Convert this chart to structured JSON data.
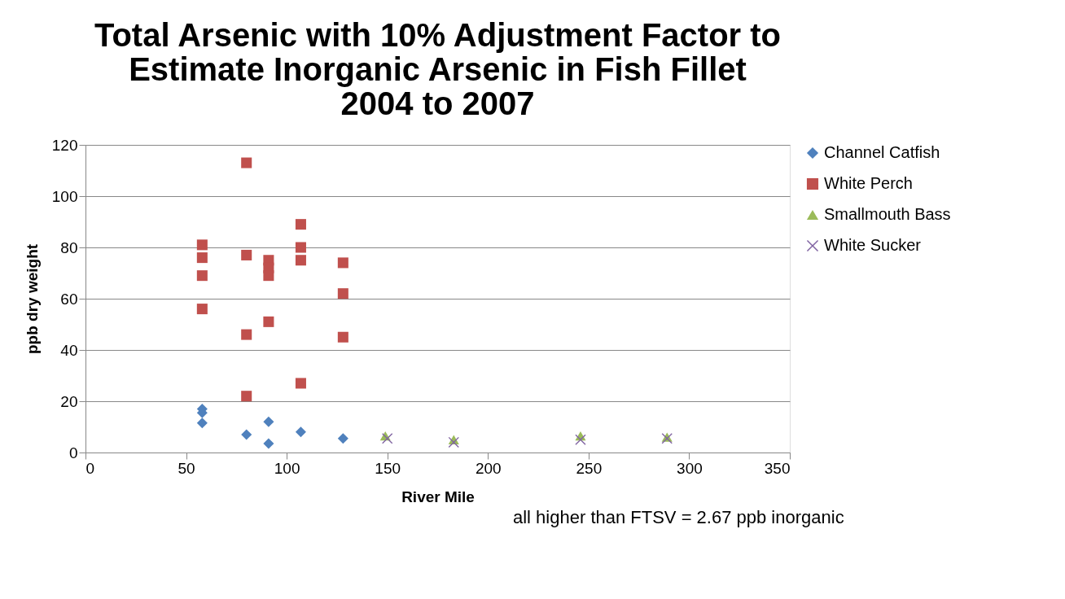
{
  "chart_data": {
    "type": "scatter",
    "title": [
      "Total Arsenic with 10% Adjustment Factor to",
      "Estimate Inorganic Arsenic  in Fish Fillet",
      "2004 to 2007"
    ],
    "xlabel": "River Mile",
    "ylabel": "ppb dry weight",
    "series": [
      {
        "name": "Channel Catfish",
        "color": "#4f81bd",
        "marker": "diamond",
        "x": [
          58,
          58,
          58,
          80,
          91,
          91,
          107,
          128
        ],
        "values": [
          17,
          15.5,
          11.5,
          7,
          12,
          3.5,
          8,
          5.5
        ]
      },
      {
        "name": "White Perch",
        "color": "#c0504d",
        "marker": "square",
        "x": [
          58,
          58,
          58,
          58,
          80,
          80,
          80,
          80,
          91,
          91,
          91,
          91,
          107,
          107,
          107,
          107,
          128,
          128,
          128
        ],
        "values": [
          81,
          76,
          69,
          56,
          113,
          77,
          46,
          22,
          75,
          72,
          69,
          51,
          89,
          80,
          75,
          27,
          74,
          62,
          45
        ]
      },
      {
        "name": "Smallmouth Bass",
        "color": "#9bbb59",
        "marker": "triangle",
        "x": [
          149,
          183,
          246,
          289
        ],
        "values": [
          6.5,
          5,
          6.5,
          6
        ]
      },
      {
        "name": "White Sucker",
        "color": "#8064a2",
        "marker": "cross",
        "x": [
          150,
          183,
          246,
          289
        ],
        "values": [
          5.5,
          4,
          5,
          5.5
        ]
      }
    ],
    "xlim": [
      0,
      350
    ],
    "xticks": [
      0,
      50,
      100,
      150,
      200,
      250,
      300,
      350
    ],
    "ylim": [
      0,
      120
    ],
    "yticks": [
      0,
      20,
      40,
      60,
      80,
      100,
      120
    ],
    "grid": "y",
    "legend": "right",
    "annotations": [
      "all higher than FTSV = 2.67 ppb inorganic"
    ]
  }
}
